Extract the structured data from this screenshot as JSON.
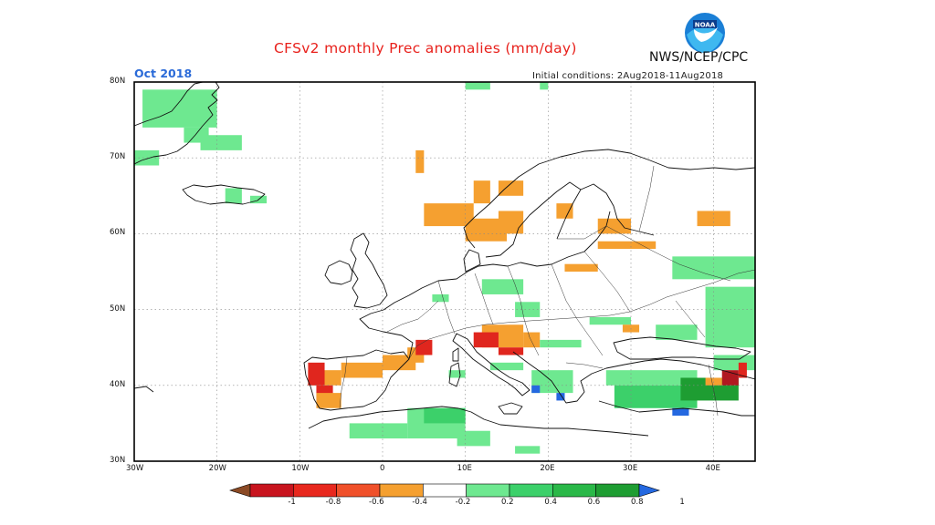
{
  "header": {
    "title": "CFSv2 monthly Prec anomalies (mm/day)",
    "agency": "NWS/NCEP/CPC",
    "logo_text": "NOAA",
    "month": "Oct 2018",
    "initial_conditions": "Initial conditions: 2Aug2018-11Aug2018"
  },
  "map": {
    "projection": "lat-lon",
    "lon_range": [
      -30,
      45
    ],
    "lat_range": [
      30,
      80
    ],
    "lat_labels": [
      "80N",
      "70N",
      "60N",
      "50N",
      "40N",
      "30N"
    ],
    "lon_labels": [
      "30W",
      "20W",
      "10W",
      "0",
      "10E",
      "20E",
      "30E",
      "40E"
    ],
    "grid": "dotted",
    "cell_size_deg": 1
  },
  "colorbar": {
    "labels": [
      "-1",
      "-0.8",
      "-0.6",
      "-0.4",
      "-0.2",
      "0.2",
      "0.4",
      "0.6",
      "0.8",
      "1"
    ],
    "colors": [
      "#8b4a25",
      "#c8141e",
      "#e8281e",
      "#f0502a",
      "#f5a030",
      "#ffffff",
      "#6ee890",
      "#3cd06a",
      "#2ab848",
      "#1e9d32",
      "#2468e0"
    ]
  },
  "anomaly_colors": {
    "lightgreen": "#6ee890",
    "green": "#3cd06a",
    "darkgreen": "#1e9d32",
    "orange": "#f5a030",
    "orangered": "#f0502a",
    "red": "#e0261e",
    "darkred": "#b01820",
    "blue": "#2468e0"
  }
}
